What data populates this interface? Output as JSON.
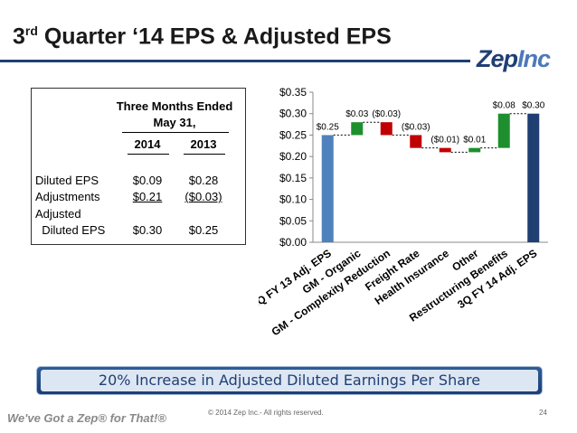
{
  "slide": {
    "title_pre": "3",
    "title_sup": "rd",
    "title_post": " Quarter ‘14 EPS & Adjusted EPS",
    "logo_zep": "Zep",
    "logo_inc": "Inc",
    "banner": "20% Increase in Adjusted Diluted Earnings Per Share",
    "tagline": "We've Got a Zep® for That!®",
    "copyright": "© 2014  Zep Inc.- All rights reserved.",
    "page_number": "24"
  },
  "table": {
    "header_line1": "Three Months Ended",
    "header_line2": "May 31,",
    "col_2014": "2014",
    "col_2013": "2013",
    "rows": [
      {
        "label": "Diluted EPS",
        "v2014": "$0.09",
        "v2013": "$0.28"
      },
      {
        "label": "Adjustments",
        "v2014": "$0.21",
        "v2013": "($0.03)"
      },
      {
        "label": "Adjusted",
        "label2": "  Diluted EPS",
        "v2014": "$0.30",
        "v2013": "$0.25"
      }
    ]
  },
  "chart_data": {
    "type": "bar",
    "subtype": "waterfall",
    "categories": [
      "3Q FY 13 Adj. EPS",
      "GM - Organic",
      "GM - Complexity Reduction",
      "Freight Rate",
      "Health Insurance",
      "Other",
      "Restructuring Benefits",
      "3Q FY 14 Adj. EPS"
    ],
    "values": [
      0.25,
      0.03,
      -0.03,
      -0.03,
      -0.01,
      0.01,
      0.08,
      0.3
    ],
    "data_labels": [
      "$0.25",
      "$0.03",
      "($0.03)",
      "($0.03)",
      "($0.01)",
      "$0.01",
      "$0.08",
      "$0.30"
    ],
    "bar_kind": [
      "total",
      "delta",
      "delta",
      "delta",
      "delta",
      "delta",
      "delta",
      "total"
    ],
    "ylim": [
      0,
      0.35
    ],
    "yticks": [
      "$0.00",
      "$0.05",
      "$0.10",
      "$0.15",
      "$0.20",
      "$0.25",
      "$0.30",
      "$0.35"
    ],
    "ytick_values": [
      0,
      0.05,
      0.1,
      0.15,
      0.2,
      0.25,
      0.3,
      0.35
    ],
    "xlabel": "",
    "ylabel": "",
    "colors": {
      "start_total": "#4f81bd",
      "end_total": "#1f3f73",
      "increase": "#1e8f2e",
      "decrease": "#c00000"
    }
  }
}
